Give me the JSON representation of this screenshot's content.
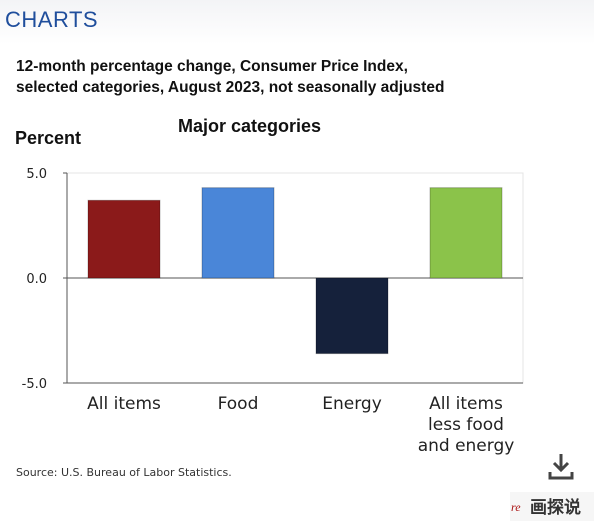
{
  "header": {
    "title": "CHARTS"
  },
  "subtitle": {
    "line1": "12-month percentage change, Consumer Price Index,",
    "line2": "selected categories, August 2023, not seasonally adjusted"
  },
  "source": "Source: U.S. Bureau of Labor Statistics.",
  "watermark": {
    "text": "画探说",
    "partial": "re"
  },
  "icons": {
    "download": "download-icon"
  },
  "chart_data": {
    "type": "bar",
    "title": "Major categories",
    "ylabel": "Percent",
    "xlabel": "",
    "ylim": [
      -5.0,
      5.0
    ],
    "yticks": [
      "5.0",
      "0.0",
      "-5.0"
    ],
    "ytick_values": [
      5.0,
      0.0,
      -5.0
    ],
    "grid": false,
    "legend": "none",
    "categories": [
      [
        "All items"
      ],
      [
        "Food"
      ],
      [
        "Energy"
      ],
      [
        "All items",
        "less food",
        "and energy"
      ]
    ],
    "values": [
      3.7,
      4.3,
      -3.6,
      4.3
    ],
    "colors": [
      "#8b1a1a",
      "#4a86d8",
      "#15213b",
      "#8bc34a"
    ]
  }
}
